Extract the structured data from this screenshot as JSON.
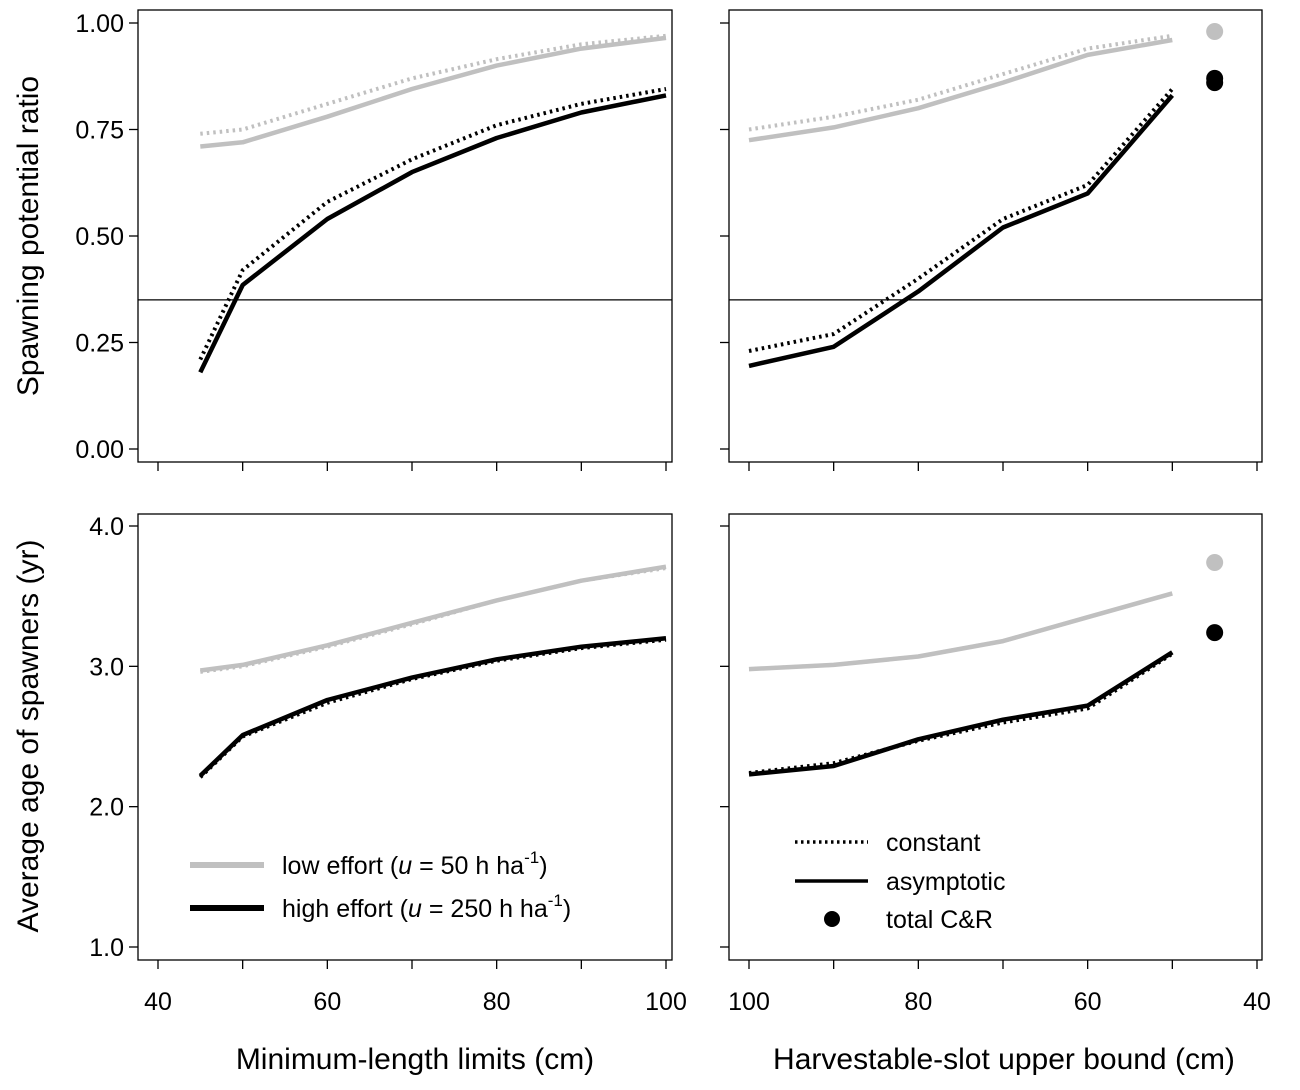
{
  "colors": {
    "low_effort": "#c0c0c0",
    "high_effort": "#000000",
    "frame": "#000000"
  },
  "labels": {
    "ylabel_top": "Spawning potential ratio",
    "ylabel_bottom": "Average age of spawners (yr)",
    "xlabel_left": "Minimum-length limits (cm)",
    "xlabel_right": "Harvestable-slot upper bound (cm)"
  },
  "legend_left": {
    "low": {
      "prefix": "low effort (",
      "var": "u",
      "mid": " = 50 h ha",
      "sup": "-1",
      "suffix": ")"
    },
    "high": {
      "prefix": "high effort (",
      "var": "u",
      "mid": " = 250 h ha",
      "sup": "-1",
      "suffix": ")"
    }
  },
  "legend_right": {
    "constant": "constant",
    "asymptotic": "asymptotic",
    "total": "total C&R"
  },
  "chart_data": [
    {
      "type": "line",
      "panel": "top-left",
      "ylabel": "Spawning potential ratio",
      "xlabel": "Minimum-length limits (cm)",
      "xlim": [
        40,
        100
      ],
      "ylim": [
        0,
        1
      ],
      "xticks": [
        40,
        60,
        80,
        100
      ],
      "xtick_labels": [
        "40",
        "60",
        "80",
        "100"
      ],
      "yticks": [
        0,
        0.25,
        0.5,
        0.75,
        1
      ],
      "ytick_labels": [
        "0.00",
        "0.25",
        "0.50",
        "0.75",
        "1.00"
      ],
      "hline": 0.35,
      "x": [
        45,
        50,
        60,
        70,
        80,
        90,
        100
      ],
      "series": [
        {
          "effort": "low",
          "model": "constant",
          "values": [
            0.74,
            0.75,
            0.81,
            0.87,
            0.915,
            0.95,
            0.97
          ]
        },
        {
          "effort": "low",
          "model": "asymptotic",
          "values": [
            0.71,
            0.72,
            0.78,
            0.845,
            0.9,
            0.94,
            0.965
          ]
        },
        {
          "effort": "high",
          "model": "constant",
          "values": [
            0.21,
            0.42,
            0.58,
            0.68,
            0.76,
            0.81,
            0.845
          ]
        },
        {
          "effort": "high",
          "model": "asymptotic",
          "values": [
            0.18,
            0.385,
            0.54,
            0.65,
            0.73,
            0.79,
            0.83
          ]
        }
      ]
    },
    {
      "type": "line",
      "panel": "top-right",
      "xlim": [
        100,
        40
      ],
      "ylim": [
        0,
        1
      ],
      "xticks": [
        100,
        80,
        60,
        40
      ],
      "xtick_labels": [
        "100",
        "80",
        "60",
        "40"
      ],
      "yticks": [
        0,
        0.25,
        0.5,
        0.75,
        1
      ],
      "hline": 0.35,
      "x": [
        100,
        90,
        80,
        70,
        60,
        50
      ],
      "series": [
        {
          "effort": "low",
          "model": "constant",
          "values": [
            0.75,
            0.78,
            0.82,
            0.88,
            0.94,
            0.97
          ]
        },
        {
          "effort": "low",
          "model": "asymptotic",
          "values": [
            0.725,
            0.755,
            0.8,
            0.86,
            0.925,
            0.96
          ]
        },
        {
          "effort": "high",
          "model": "constant",
          "values": [
            0.23,
            0.27,
            0.4,
            0.54,
            0.62,
            0.845
          ]
        },
        {
          "effort": "high",
          "model": "asymptotic",
          "values": [
            0.195,
            0.24,
            0.37,
            0.52,
            0.6,
            0.83
          ]
        }
      ],
      "points": [
        {
          "effort": "low",
          "label": "total C&R",
          "x": 45,
          "y": 0.98
        },
        {
          "effort": "high",
          "label": "total C&R",
          "x": 45,
          "y": 0.87
        },
        {
          "effort": "high",
          "label": "total C&R",
          "x": 45,
          "y": 0.86
        }
      ]
    },
    {
      "type": "line",
      "panel": "bottom-left",
      "ylabel": "Average age of spawners (yr)",
      "xlabel": "Minimum-length limits (cm)",
      "xlim": [
        40,
        100
      ],
      "ylim": [
        1,
        4
      ],
      "xticks": [
        40,
        60,
        80,
        100
      ],
      "xtick_labels": [
        "40",
        "60",
        "80",
        "100"
      ],
      "yticks": [
        1,
        2,
        3,
        4
      ],
      "ytick_labels": [
        "1.0",
        "2.0",
        "3.0",
        "4.0"
      ],
      "x": [
        45,
        50,
        60,
        70,
        80,
        90,
        100
      ],
      "series": [
        {
          "effort": "low",
          "model": "constant",
          "values": [
            2.96,
            3.0,
            3.14,
            3.3,
            3.47,
            3.61,
            3.7
          ]
        },
        {
          "effort": "low",
          "model": "asymptotic",
          "values": [
            2.97,
            3.01,
            3.15,
            3.31,
            3.47,
            3.61,
            3.71
          ]
        },
        {
          "effort": "high",
          "model": "constant",
          "values": [
            2.21,
            2.5,
            2.74,
            2.91,
            3.04,
            3.13,
            3.19
          ]
        },
        {
          "effort": "high",
          "model": "asymptotic",
          "values": [
            2.22,
            2.51,
            2.76,
            2.92,
            3.05,
            3.14,
            3.2
          ]
        }
      ]
    },
    {
      "type": "line",
      "panel": "bottom-right",
      "xlabel": "Harvestable-slot upper bound (cm)",
      "xlim": [
        100,
        40
      ],
      "ylim": [
        1,
        4
      ],
      "xticks": [
        100,
        80,
        60,
        40
      ],
      "xtick_labels": [
        "100",
        "80",
        "60",
        "40"
      ],
      "yticks": [
        1,
        2,
        3,
        4
      ],
      "x": [
        100,
        90,
        80,
        70,
        60,
        50
      ],
      "series": [
        {
          "effort": "low",
          "model": "constant",
          "values": [
            2.98,
            3.01,
            3.07,
            3.18,
            3.35,
            3.52
          ]
        },
        {
          "effort": "low",
          "model": "asymptotic",
          "values": [
            2.98,
            3.01,
            3.07,
            3.18,
            3.35,
            3.52
          ]
        },
        {
          "effort": "high",
          "model": "constant",
          "values": [
            2.24,
            2.31,
            2.47,
            2.6,
            2.7,
            3.09
          ]
        },
        {
          "effort": "high",
          "model": "asymptotic",
          "values": [
            2.23,
            2.29,
            2.48,
            2.62,
            2.72,
            3.1
          ]
        }
      ],
      "points": [
        {
          "effort": "low",
          "label": "total C&R",
          "x": 45,
          "y": 3.74
        },
        {
          "effort": "high",
          "label": "total C&R",
          "x": 45,
          "y": 3.24
        }
      ]
    }
  ]
}
